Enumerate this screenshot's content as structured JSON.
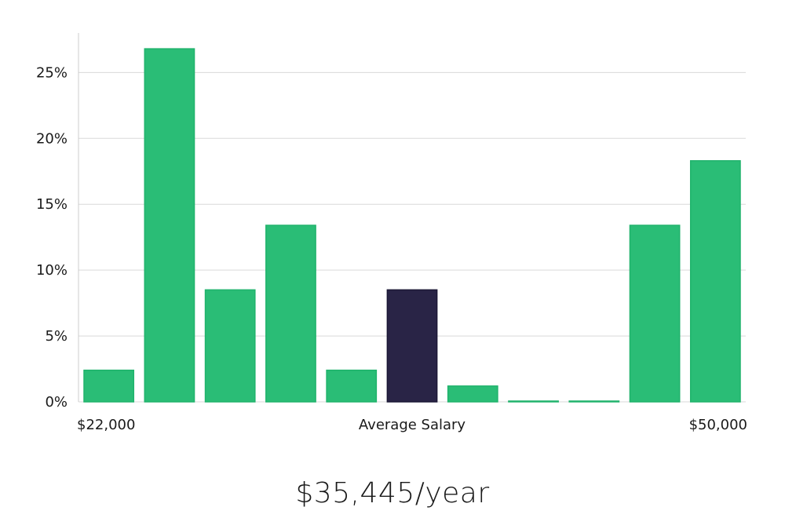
{
  "chart_data": {
    "type": "bar",
    "values": [
      2.4,
      26.8,
      8.5,
      13.4,
      2.4,
      8.5,
      1.2,
      0,
      0,
      13.4,
      18.3
    ],
    "highlight_index": 5,
    "ylim": [
      0,
      28
    ],
    "yticks": [
      0,
      5,
      10,
      15,
      20,
      25
    ],
    "ytick_format": "{v}%",
    "x_min_label": "$22,000",
    "x_center_label": "Average Salary",
    "x_max_label": "$50,000",
    "colors": {
      "bar": "#2abd76",
      "bar_stroke": "#20b36c",
      "highlight": "#292446",
      "grid": "#d9d9d9",
      "axis": "#cccccc"
    },
    "grid": true
  },
  "summary": {
    "salary": "$35,445/year"
  }
}
